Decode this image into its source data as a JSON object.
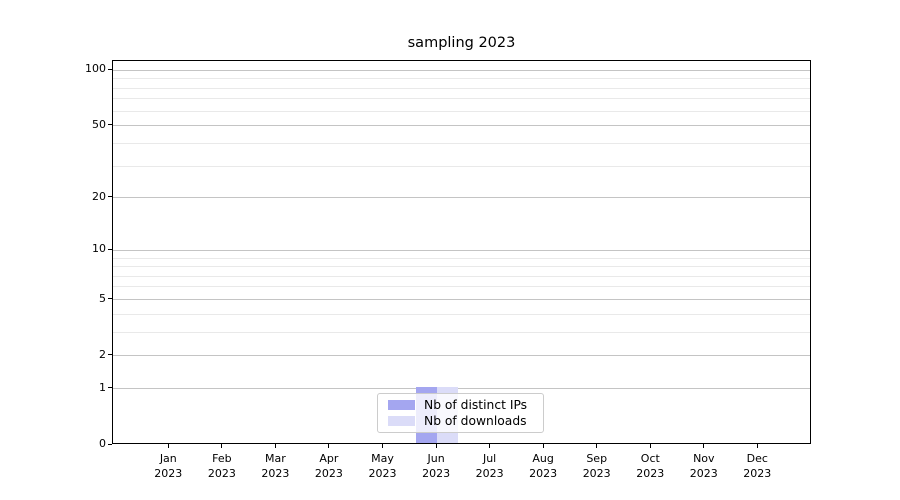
{
  "chart_data": {
    "type": "bar",
    "title": "sampling 2023",
    "categories": [
      "Jan",
      "Feb",
      "Mar",
      "Apr",
      "May",
      "Jun",
      "Jul",
      "Aug",
      "Sep",
      "Oct",
      "Nov",
      "Dec"
    ],
    "year_label": "2023",
    "series": [
      {
        "name": "Nb of distinct IPs",
        "color": "#a4a6f0",
        "values": [
          0,
          0,
          0,
          0,
          0,
          1,
          0,
          0,
          0,
          0,
          0,
          0
        ]
      },
      {
        "name": "Nb of downloads",
        "color": "#dbdcf8",
        "values": [
          0,
          0,
          0,
          0,
          0,
          1,
          0,
          0,
          0,
          0,
          0,
          0
        ]
      }
    ],
    "xlabel": "",
    "ylabel": "",
    "yscale": "log1p",
    "ylim": [
      0,
      112
    ],
    "yticks_major": [
      0,
      1,
      2,
      5,
      10,
      20,
      50,
      100
    ],
    "yticks_minor": [
      3,
      4,
      6,
      7,
      8,
      9,
      30,
      40,
      60,
      70,
      80,
      90
    ],
    "grid": "horizontal major and minor gridlines",
    "legend_position": "lower center",
    "colors": {
      "grid_major": "#c4c4c4",
      "grid_minor": "#e9e9e9",
      "spine": "#000000",
      "text": "#000000",
      "background": "#ffffff"
    }
  }
}
